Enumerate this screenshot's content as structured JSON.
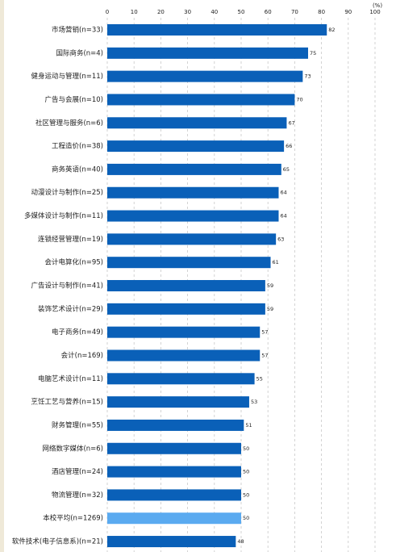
{
  "chart_data": {
    "type": "bar",
    "orientation": "horizontal",
    "unit_label": "(%)",
    "categories": [
      "市场营销(n=33)",
      "国际商务(n=4)",
      "健身运动与管理(n=11)",
      "广告与会展(n=10)",
      "社区管理与服务(n=6)",
      "工程造价(n=38)",
      "商务英语(n=40)",
      "动漫设计与制作(n=25)",
      "多媒体设计与制作(n=11)",
      "连锁经营管理(n=19)",
      "会计电算化(n=95)",
      "广告设计与制作(n=41)",
      "装饰艺术设计(n=29)",
      "电子商务(n=49)",
      "会计(n=169)",
      "电脑艺术设计(n=11)",
      "烹饪工艺与营养(n=15)",
      "财务管理(n=55)",
      "网络数字媒体(n=6)",
      "酒店管理(n=24)",
      "物流管理(n=32)",
      "本校平均(n=1269)",
      "软件技术(电子信息系)(n=21)"
    ],
    "values": [
      82,
      75,
      73,
      70,
      67,
      66,
      65,
      64,
      64,
      63,
      61,
      59,
      59,
      57,
      57,
      55,
      53,
      51,
      50,
      50,
      50,
      50,
      48
    ],
    "colors": [
      "#0a60b8",
      "#0a60b8",
      "#0a60b8",
      "#0a60b8",
      "#0a60b8",
      "#0a60b8",
      "#0a60b8",
      "#0a60b8",
      "#0a60b8",
      "#0a60b8",
      "#0a60b8",
      "#0a60b8",
      "#0a60b8",
      "#0a60b8",
      "#0a60b8",
      "#0a60b8",
      "#0a60b8",
      "#0a60b8",
      "#0a60b8",
      "#0a60b8",
      "#0a60b8",
      "#5aaaf0",
      "#0a60b8"
    ],
    "xlim": [
      0,
      100
    ],
    "xticks": [
      0,
      10,
      20,
      30,
      40,
      50,
      60,
      70,
      80,
      90,
      100
    ],
    "grid": true
  }
}
